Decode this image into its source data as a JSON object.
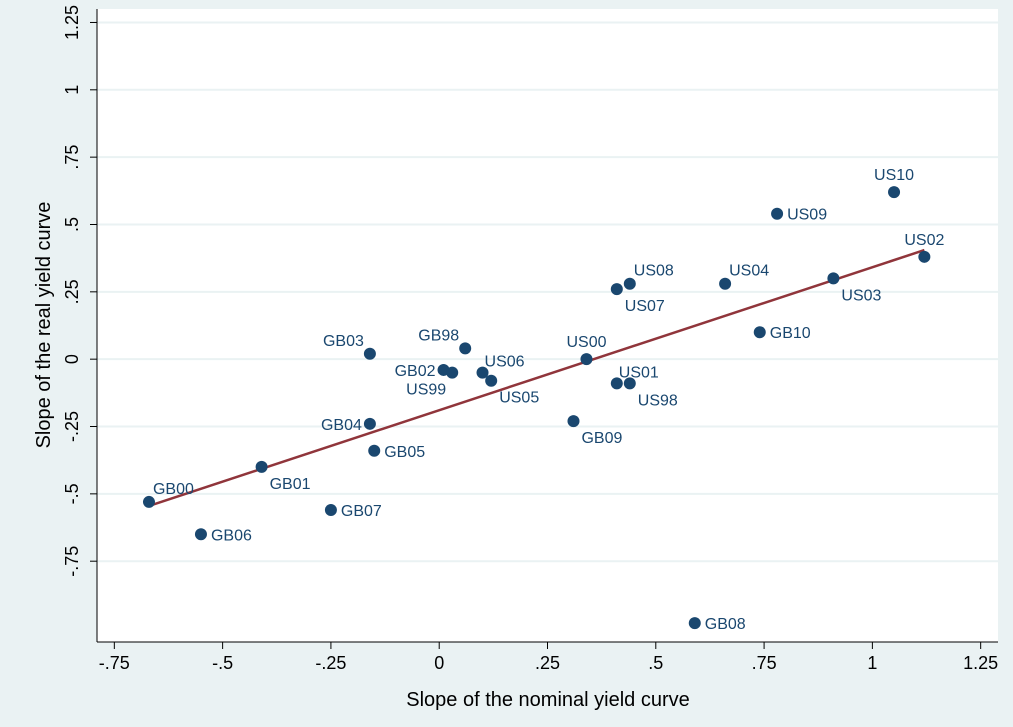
{
  "chart_data": {
    "type": "scatter",
    "title": "",
    "xlabel": "Slope of the nominal yield curve",
    "ylabel": "Slope of the real yield curve",
    "xlim": [
      -0.79,
      1.29
    ],
    "ylim": [
      -1.05,
      1.3
    ],
    "x_ticks": [
      -0.75,
      -0.5,
      -0.25,
      0,
      0.25,
      0.5,
      0.75,
      1,
      1.25
    ],
    "x_tick_labels": [
      "-.75",
      "-.5",
      "-.25",
      "0",
      ".25",
      ".5",
      ".75",
      "1",
      "1.25"
    ],
    "y_ticks": [
      -0.75,
      -0.5,
      -0.25,
      0,
      0.25,
      0.5,
      0.75,
      1,
      1.25
    ],
    "y_tick_labels": [
      "-.75",
      "-.5",
      "-.25",
      "0",
      ".25",
      ".5",
      ".75",
      "1",
      "1.25"
    ],
    "grid": true,
    "marker_color": "#1a476f",
    "fit_line_color": "#90353b",
    "points": [
      {
        "label": "GB00",
        "x": -0.67,
        "y": -0.53,
        "pos": "tr"
      },
      {
        "label": "GB01",
        "x": -0.41,
        "y": -0.4,
        "pos": "br"
      },
      {
        "label": "GB02",
        "x": 0.01,
        "y": -0.04,
        "pos": "l"
      },
      {
        "label": "GB03",
        "x": -0.16,
        "y": 0.02,
        "pos": "tl"
      },
      {
        "label": "GB04",
        "x": -0.16,
        "y": -0.24,
        "pos": "l"
      },
      {
        "label": "GB05",
        "x": -0.15,
        "y": -0.34,
        "pos": "r"
      },
      {
        "label": "GB06",
        "x": -0.55,
        "y": -0.65,
        "pos": "r"
      },
      {
        "label": "GB07",
        "x": -0.25,
        "y": -0.56,
        "pos": "r"
      },
      {
        "label": "GB08",
        "x": 0.59,
        "y": -0.98,
        "pos": "r"
      },
      {
        "label": "GB09",
        "x": 0.31,
        "y": -0.23,
        "pos": "br"
      },
      {
        "label": "GB10",
        "x": 0.74,
        "y": 0.1,
        "pos": "r"
      },
      {
        "label": "GB98",
        "x": 0.06,
        "y": 0.04,
        "pos": "tl"
      },
      {
        "label": "US99",
        "x": 0.03,
        "y": -0.05,
        "pos": "bl"
      },
      {
        "label": "US00",
        "x": 0.34,
        "y": 0.0,
        "pos": "t"
      },
      {
        "label": "US01",
        "x": 0.41,
        "y": -0.09,
        "pos": "ur"
      },
      {
        "label": "US02",
        "x": 1.12,
        "y": 0.38,
        "pos": "t"
      },
      {
        "label": "US03",
        "x": 0.91,
        "y": 0.3,
        "pos": "br"
      },
      {
        "label": "US04",
        "x": 0.66,
        "y": 0.28,
        "pos": "tr"
      },
      {
        "label": "US05",
        "x": 0.12,
        "y": -0.08,
        "pos": "br"
      },
      {
        "label": "US06",
        "x": 0.1,
        "y": -0.05,
        "pos": "ur"
      },
      {
        "label": "US07",
        "x": 0.41,
        "y": 0.26,
        "pos": "br"
      },
      {
        "label": "US08",
        "x": 0.44,
        "y": 0.28,
        "pos": "tr"
      },
      {
        "label": "US09",
        "x": 0.78,
        "y": 0.54,
        "pos": "r"
      },
      {
        "label": "US10",
        "x": 1.05,
        "y": 0.62,
        "pos": "t"
      },
      {
        "label": "US98",
        "x": 0.44,
        "y": -0.09,
        "pos": "br"
      }
    ],
    "fit_line": {
      "x": [
        -0.67,
        1.12
      ],
      "y": [
        -0.545,
        0.405
      ]
    }
  }
}
